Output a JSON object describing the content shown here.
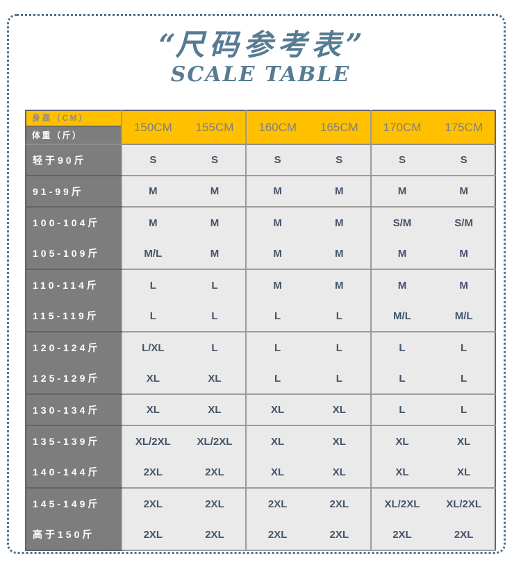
{
  "header": {
    "open_quote": "“",
    "title": "尺码参考表",
    "close_quote": "”",
    "subtitle": "SCALE TABLE"
  },
  "chart_data": {
    "type": "table",
    "title": "尺码参考表",
    "subtitle": "SCALE TABLE",
    "corner_top": "身高（CM）",
    "corner_bottom": "体重（斤）",
    "columns": [
      "150CM",
      "155CM",
      "160CM",
      "165CM",
      "170CM",
      "175CM"
    ],
    "rows": [
      {
        "label": "轻于90斤",
        "sizes": [
          "S",
          "S",
          "S",
          "S",
          "S",
          "S"
        ],
        "block_end": true
      },
      {
        "label": "91-99斤",
        "sizes": [
          "M",
          "M",
          "M",
          "M",
          "M",
          "M"
        ],
        "block_end": true
      },
      {
        "label": "100-104斤",
        "sizes": [
          "M",
          "M",
          "M",
          "M",
          "S/M",
          "S/M"
        ],
        "block_end": false
      },
      {
        "label": "105-109斤",
        "sizes": [
          "M/L",
          "M",
          "M",
          "M",
          "M",
          "M"
        ],
        "block_end": true
      },
      {
        "label": "110-114斤",
        "sizes": [
          "L",
          "L",
          "M",
          "M",
          "M",
          "M"
        ],
        "block_end": false
      },
      {
        "label": "115-119斤",
        "sizes": [
          "L",
          "L",
          "L",
          "L",
          "M/L",
          "M/L"
        ],
        "block_end": true
      },
      {
        "label": "120-124斤",
        "sizes": [
          "L/XL",
          "L",
          "L",
          "L",
          "L",
          "L"
        ],
        "block_end": false
      },
      {
        "label": "125-129斤",
        "sizes": [
          "XL",
          "XL",
          "L",
          "L",
          "L",
          "L"
        ],
        "block_end": true
      },
      {
        "label": "130-134斤",
        "sizes": [
          "XL",
          "XL",
          "XL",
          "XL",
          "L",
          "L"
        ],
        "block_end": true
      },
      {
        "label": "135-139斤",
        "sizes": [
          "XL/2XL",
          "XL/2XL",
          "XL",
          "XL",
          "XL",
          "XL"
        ],
        "block_end": false
      },
      {
        "label": "140-144斤",
        "sizes": [
          "2XL",
          "2XL",
          "XL",
          "XL",
          "XL",
          "XL"
        ],
        "block_end": true
      },
      {
        "label": "145-149斤",
        "sizes": [
          "2XL",
          "2XL",
          "2XL",
          "2XL",
          "XL/2XL",
          "XL/2XL"
        ],
        "block_end": false
      },
      {
        "label": "高于150斤",
        "sizes": [
          "2XL",
          "2XL",
          "2XL",
          "2XL",
          "2XL",
          "2XL"
        ],
        "block_end": true
      }
    ]
  },
  "colors": {
    "accent_yellow": "#FFC000",
    "label_column_gray": "#7D7D7D",
    "cell_background": "#EAEAEA",
    "value_text": "#44546A",
    "title_blue": "#567C93",
    "dotted_border": "#4F7189"
  }
}
